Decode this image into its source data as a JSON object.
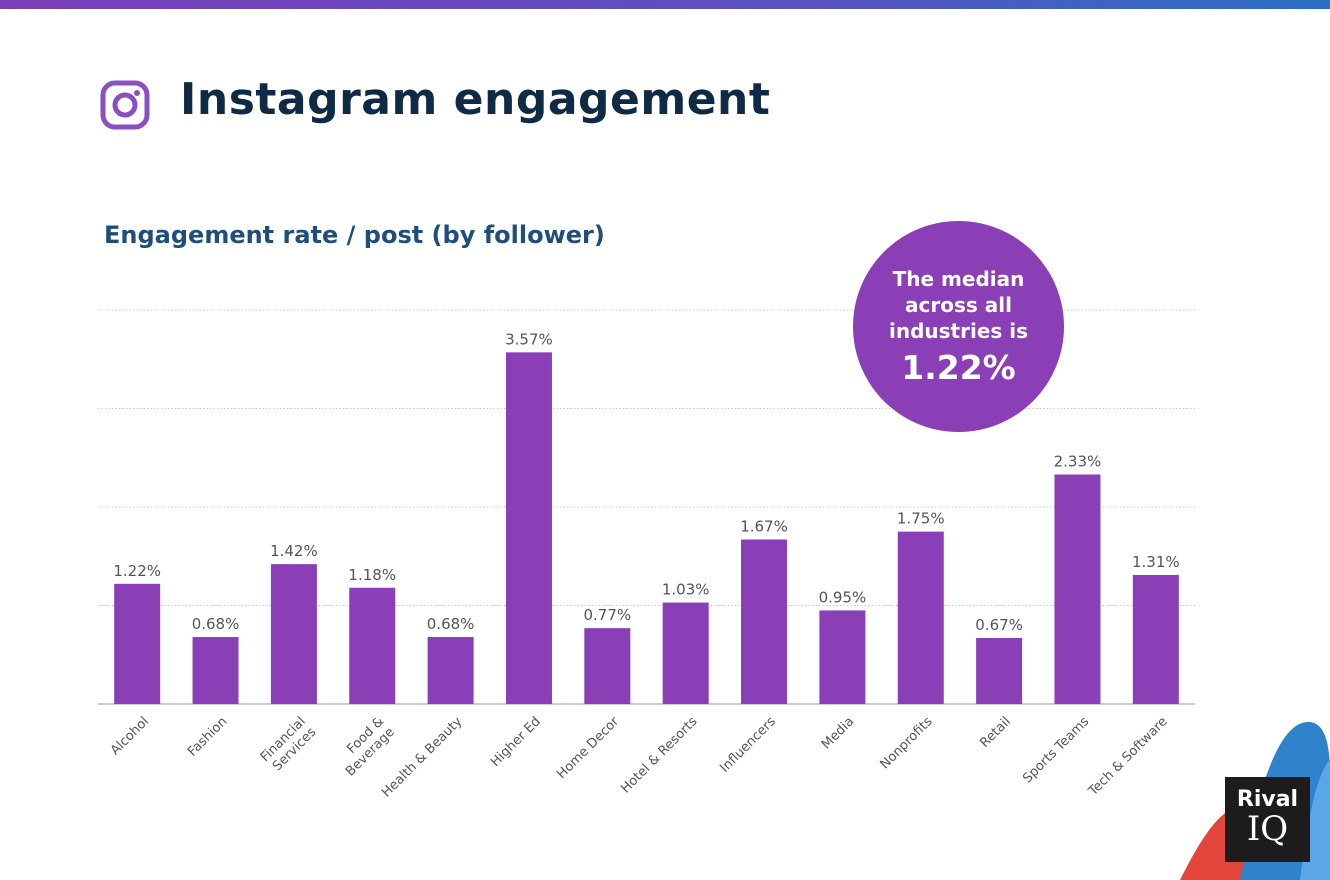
{
  "header": {
    "title": "Instagram engagement",
    "icon": "instagram-icon"
  },
  "callout": {
    "text": "The median across all industries is",
    "value": "1.22%"
  },
  "logo": {
    "text": "Rival IQ"
  },
  "colors": {
    "bar": "#8a3fb7",
    "title": "#0e2a44",
    "subtitle": "#1f4e7a",
    "grid": "#cccccc"
  },
  "chart_data": {
    "type": "bar",
    "title": "Engagement rate / post (by follower)",
    "categories": [
      "Alcohol",
      "Fashion",
      "Financial Services",
      "Food & Beverage",
      "Health & Beauty",
      "Higher Ed",
      "Home Decor",
      "Hotel & Resorts",
      "Influencers",
      "Media",
      "Nonprofits",
      "Retail",
      "Sports Teams",
      "Tech & Software"
    ],
    "values": [
      1.22,
      0.68,
      1.42,
      1.18,
      0.68,
      3.57,
      0.77,
      1.03,
      1.67,
      0.95,
      1.75,
      0.67,
      2.33,
      1.31
    ],
    "labels": [
      "1.22%",
      "0.68%",
      "1.42%",
      "1.18%",
      "0.68%",
      "3.57%",
      "0.77%",
      "1.03%",
      "1.67%",
      "0.95%",
      "1.75%",
      "0.67%",
      "2.33%",
      "1.31%"
    ],
    "unit": "%",
    "ylim": [
      0,
      4
    ],
    "grid": true,
    "y_tick_labels_shown": false
  }
}
